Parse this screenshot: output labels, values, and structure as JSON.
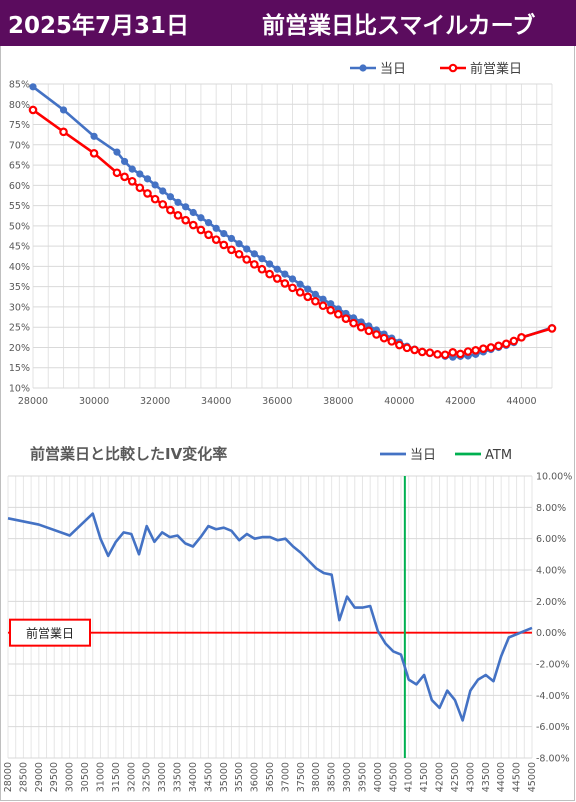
{
  "header": {
    "date": "2025年7月31日",
    "title": "前営業日比スマイルカーブ"
  },
  "chart_data": [
    {
      "type": "line",
      "title": "",
      "legend": {
        "placement": "top-right",
        "entries": [
          "当日",
          "前営業日"
        ]
      },
      "xlim": [
        28000,
        45000
      ],
      "ylim": [
        10,
        85
      ],
      "x_ticks": [
        28000,
        30000,
        32000,
        34000,
        36000,
        38000,
        40000,
        42000,
        44000
      ],
      "x_tick_labels": [
        "28000",
        "30000",
        "32000",
        "34000",
        "36000",
        "38000",
        "40000",
        "42000",
        "44000"
      ],
      "y_ticks": [
        10,
        15,
        20,
        25,
        30,
        35,
        40,
        45,
        50,
        55,
        60,
        65,
        70,
        75,
        80,
        85
      ],
      "y_tick_labels": [
        "10%",
        "15%",
        "20%",
        "25%",
        "30%",
        "35%",
        "40%",
        "45%",
        "50%",
        "55%",
        "60%",
        "65%",
        "70%",
        "75%",
        "80%",
        "85%"
      ],
      "grid": true,
      "series": [
        {
          "name": "当日",
          "color": "#4472c4",
          "points": [
            [
              28000,
              84.3
            ],
            [
              29000,
              78.6
            ],
            [
              30000,
              72.1
            ],
            [
              30750,
              68.2
            ],
            [
              31000,
              65.9
            ],
            [
              31250,
              64.0
            ],
            [
              31500,
              62.8
            ],
            [
              31750,
              61.6
            ],
            [
              32000,
              60.1
            ],
            [
              32250,
              58.6
            ],
            [
              32500,
              57.2
            ],
            [
              32750,
              55.8
            ],
            [
              33000,
              54.7
            ],
            [
              33250,
              53.3
            ],
            [
              33500,
              52.0
            ],
            [
              33750,
              50.8
            ],
            [
              34000,
              49.4
            ],
            [
              34250,
              48.1
            ],
            [
              34500,
              46.9
            ],
            [
              34750,
              45.6
            ],
            [
              35000,
              44.3
            ],
            [
              35250,
              43.1
            ],
            [
              35500,
              41.9
            ],
            [
              35750,
              40.6
            ],
            [
              36000,
              39.3
            ],
            [
              36250,
              38.1
            ],
            [
              36500,
              36.9
            ],
            [
              36750,
              35.6
            ],
            [
              37000,
              34.4
            ],
            [
              37250,
              33.1
            ],
            [
              37500,
              31.9
            ],
            [
              37750,
              30.8
            ],
            [
              38000,
              29.5
            ],
            [
              38250,
              28.4
            ],
            [
              38500,
              27.3
            ],
            [
              38750,
              26.3
            ],
            [
              39000,
              25.3
            ],
            [
              39250,
              24.3
            ],
            [
              39500,
              23.3
            ],
            [
              39750,
              22.3
            ],
            [
              40000,
              21.3
            ],
            [
              40250,
              20.3
            ],
            [
              40500,
              19.6
            ],
            [
              40750,
              19.0
            ],
            [
              41000,
              18.5
            ],
            [
              41250,
              18.2
            ],
            [
              41500,
              17.8
            ],
            [
              41750,
              17.6
            ],
            [
              42000,
              17.8
            ],
            [
              42250,
              17.9
            ],
            [
              42500,
              18.3
            ],
            [
              42750,
              18.9
            ],
            [
              43000,
              19.5
            ],
            [
              43250,
              20.0
            ],
            [
              43500,
              20.5
            ],
            [
              43750,
              21.2
            ],
            [
              44000,
              22.4
            ],
            [
              45000,
              24.9
            ]
          ]
        },
        {
          "name": "前営業日",
          "color": "#ff0000",
          "points": [
            [
              28000,
              78.6
            ],
            [
              29000,
              73.2
            ],
            [
              30000,
              67.9
            ],
            [
              30750,
              63.1
            ],
            [
              31000,
              62.1
            ],
            [
              31250,
              61.0
            ],
            [
              31500,
              59.4
            ],
            [
              31750,
              58.0
            ],
            [
              32000,
              56.6
            ],
            [
              32250,
              55.3
            ],
            [
              32500,
              53.9
            ],
            [
              32750,
              52.6
            ],
            [
              33000,
              51.4
            ],
            [
              33250,
              50.2
            ],
            [
              33500,
              49.0
            ],
            [
              33750,
              47.8
            ],
            [
              34000,
              46.6
            ],
            [
              34250,
              45.3
            ],
            [
              34500,
              44.1
            ],
            [
              34750,
              43.0
            ],
            [
              35000,
              41.7
            ],
            [
              35250,
              40.5
            ],
            [
              35500,
              39.3
            ],
            [
              35750,
              38.1
            ],
            [
              36000,
              37.0
            ],
            [
              36250,
              35.8
            ],
            [
              36500,
              34.7
            ],
            [
              36750,
              33.6
            ],
            [
              37000,
              32.5
            ],
            [
              37250,
              31.4
            ],
            [
              37500,
              30.3
            ],
            [
              37750,
              29.2
            ],
            [
              38000,
              28.2
            ],
            [
              38250,
              27.1
            ],
            [
              38500,
              26.0
            ],
            [
              38750,
              25.0
            ],
            [
              39000,
              24.1
            ],
            [
              39250,
              23.2
            ],
            [
              39500,
              22.3
            ],
            [
              39750,
              21.5
            ],
            [
              40000,
              20.6
            ],
            [
              40250,
              19.9
            ],
            [
              40500,
              19.4
            ],
            [
              40750,
              18.9
            ],
            [
              41000,
              18.7
            ],
            [
              41250,
              18.3
            ],
            [
              41500,
              18.2
            ],
            [
              41750,
              18.8
            ],
            [
              42000,
              18.4
            ],
            [
              42250,
              19.0
            ],
            [
              42500,
              19.3
            ],
            [
              42750,
              19.7
            ],
            [
              43000,
              20.0
            ],
            [
              43250,
              20.4
            ],
            [
              43500,
              20.9
            ],
            [
              43750,
              21.6
            ],
            [
              44000,
              22.5
            ],
            [
              45000,
              24.7
            ]
          ]
        }
      ]
    },
    {
      "type": "line",
      "title": "前営業日と比較したIV変化率",
      "legend": {
        "placement": "top-right",
        "entries": [
          "当日",
          "ATM"
        ]
      },
      "ylim": [
        -8,
        10
      ],
      "y_ticks": [
        -8,
        -6,
        -4,
        -2,
        0,
        2,
        4,
        6,
        8,
        10
      ],
      "y_tick_labels": [
        "-8.00%",
        "-6.00%",
        "-4.00%",
        "-2.00%",
        "0.00%",
        "2.00%",
        "4.00%",
        "6.00%",
        "8.00%",
        "10.00%"
      ],
      "grid": true,
      "baseline_label": "前営業日",
      "atm_strike": 40875,
      "categories": [
        "28000",
        "28500",
        "29000",
        "29500",
        "30000",
        "30500",
        "31000",
        "31500",
        "32000",
        "32500",
        "33000",
        "33500",
        "34000",
        "34500",
        "35000",
        "35500",
        "36000",
        "36500",
        "37000",
        "37500",
        "38000",
        "38500",
        "39000",
        "39500",
        "40000",
        "40500",
        "41000",
        "41500",
        "42000",
        "42500",
        "43000",
        "43500",
        "44000",
        "44500",
        "45000"
      ],
      "series": [
        {
          "name": "当日",
          "color": "#4472c4",
          "points": [
            [
              28000,
              7.3
            ],
            [
              29000,
              6.9
            ],
            [
              30000,
              6.2
            ],
            [
              30750,
              7.6
            ],
            [
              31000,
              6.0
            ],
            [
              31250,
              4.9
            ],
            [
              31500,
              5.8
            ],
            [
              31750,
              6.4
            ],
            [
              32000,
              6.3
            ],
            [
              32250,
              5.0
            ],
            [
              32500,
              6.8
            ],
            [
              32750,
              5.8
            ],
            [
              33000,
              6.4
            ],
            [
              33250,
              6.1
            ],
            [
              33500,
              6.2
            ],
            [
              33750,
              5.7
            ],
            [
              34000,
              5.5
            ],
            [
              34250,
              6.1
            ],
            [
              34500,
              6.8
            ],
            [
              34750,
              6.6
            ],
            [
              35000,
              6.7
            ],
            [
              35250,
              6.5
            ],
            [
              35500,
              5.9
            ],
            [
              35750,
              6.3
            ],
            [
              36000,
              6.0
            ],
            [
              36250,
              6.1
            ],
            [
              36500,
              6.1
            ],
            [
              36750,
              5.9
            ],
            [
              37000,
              6.0
            ],
            [
              37250,
              5.5
            ],
            [
              37500,
              5.1
            ],
            [
              37750,
              4.6
            ],
            [
              38000,
              4.1
            ],
            [
              38250,
              3.8
            ],
            [
              38500,
              3.7
            ],
            [
              38750,
              0.8
            ],
            [
              39000,
              2.3
            ],
            [
              39250,
              1.6
            ],
            [
              39500,
              1.6
            ],
            [
              39750,
              1.7
            ],
            [
              40000,
              0.1
            ],
            [
              40250,
              -0.7
            ],
            [
              40500,
              -1.2
            ],
            [
              40750,
              -1.4
            ],
            [
              41000,
              -3.0
            ],
            [
              41250,
              -3.3
            ],
            [
              41500,
              -2.7
            ],
            [
              41750,
              -4.3
            ],
            [
              42000,
              -4.8
            ],
            [
              42250,
              -3.7
            ],
            [
              42500,
              -4.3
            ],
            [
              42750,
              -5.6
            ],
            [
              43000,
              -3.7
            ],
            [
              43250,
              -3.0
            ],
            [
              43500,
              -2.7
            ],
            [
              43750,
              -3.1
            ],
            [
              44000,
              -1.5
            ],
            [
              44250,
              -0.3
            ],
            [
              44500,
              -0.1
            ],
            [
              44750,
              0.1
            ],
            [
              45000,
              0.3
            ]
          ]
        },
        {
          "name": "ATM",
          "color": "#00b050",
          "points": [
            [
              40875,
              -8
            ],
            [
              40875,
              10
            ]
          ]
        }
      ]
    }
  ]
}
